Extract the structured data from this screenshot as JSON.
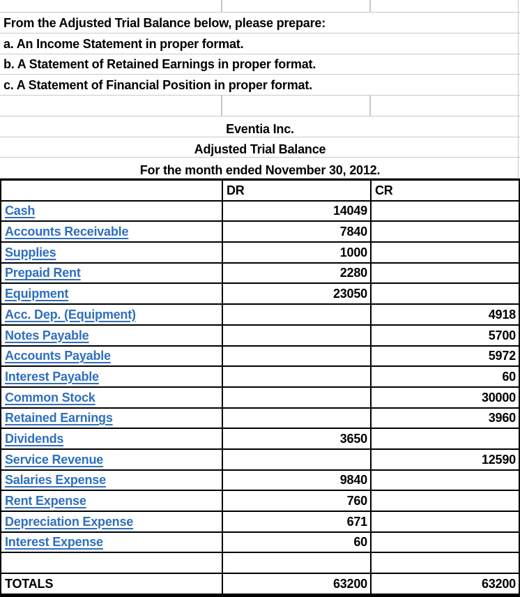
{
  "instructions": {
    "intro": "From the Adjusted Trial Balance below, please prepare:",
    "item_a": "a. An Income Statement in proper format.",
    "item_b": "b. A Statement of Retained Earnings in proper format.",
    "item_c": "c. A Statement of Financial Position in proper format."
  },
  "header": {
    "company": "Eventia Inc.",
    "report": "Adjusted Trial Balance",
    "period": "For the month ended November 30, 2012."
  },
  "trial_balance": {
    "col_dr": "DR",
    "col_cr": "CR",
    "rows": [
      {
        "account": "Cash",
        "dr": "14049",
        "cr": ""
      },
      {
        "account": "Accounts Receivable",
        "dr": "7840",
        "cr": ""
      },
      {
        "account": "Supplies",
        "dr": "1000",
        "cr": ""
      },
      {
        "account": "Prepaid Rent",
        "dr": "2280",
        "cr": ""
      },
      {
        "account": "Equipment",
        "dr": "23050",
        "cr": ""
      },
      {
        "account": "Acc. Dep. (Equipment)",
        "dr": "",
        "cr": "4918"
      },
      {
        "account": "Notes Payable",
        "dr": "",
        "cr": "5700"
      },
      {
        "account": "Accounts Payable",
        "dr": "",
        "cr": "5972"
      },
      {
        "account": "Interest Payable",
        "dr": "",
        "cr": "60"
      },
      {
        "account": "Common Stock",
        "dr": "",
        "cr": "30000"
      },
      {
        "account": "Retained Earnings",
        "dr": "",
        "cr": "3960"
      },
      {
        "account": "Dividends",
        "dr": "3650",
        "cr": ""
      },
      {
        "account": "Service Revenue",
        "dr": "",
        "cr": "12590"
      },
      {
        "account": "Salaries Expense",
        "dr": "9840",
        "cr": ""
      },
      {
        "account": "Rent Expense",
        "dr": "760",
        "cr": ""
      },
      {
        "account": "Depreciation Expense",
        "dr": "671",
        "cr": ""
      },
      {
        "account": "Interest Expense",
        "dr": "60",
        "cr": ""
      },
      {
        "account": "",
        "dr": "",
        "cr": ""
      }
    ],
    "totals": {
      "label": "TOTALS",
      "dr": "63200",
      "cr": "63200"
    }
  },
  "colors": {
    "hyperlink_blue": "#2E6FBE",
    "gridline_gray": "#C8C8C8",
    "table_border_black": "#000000"
  }
}
